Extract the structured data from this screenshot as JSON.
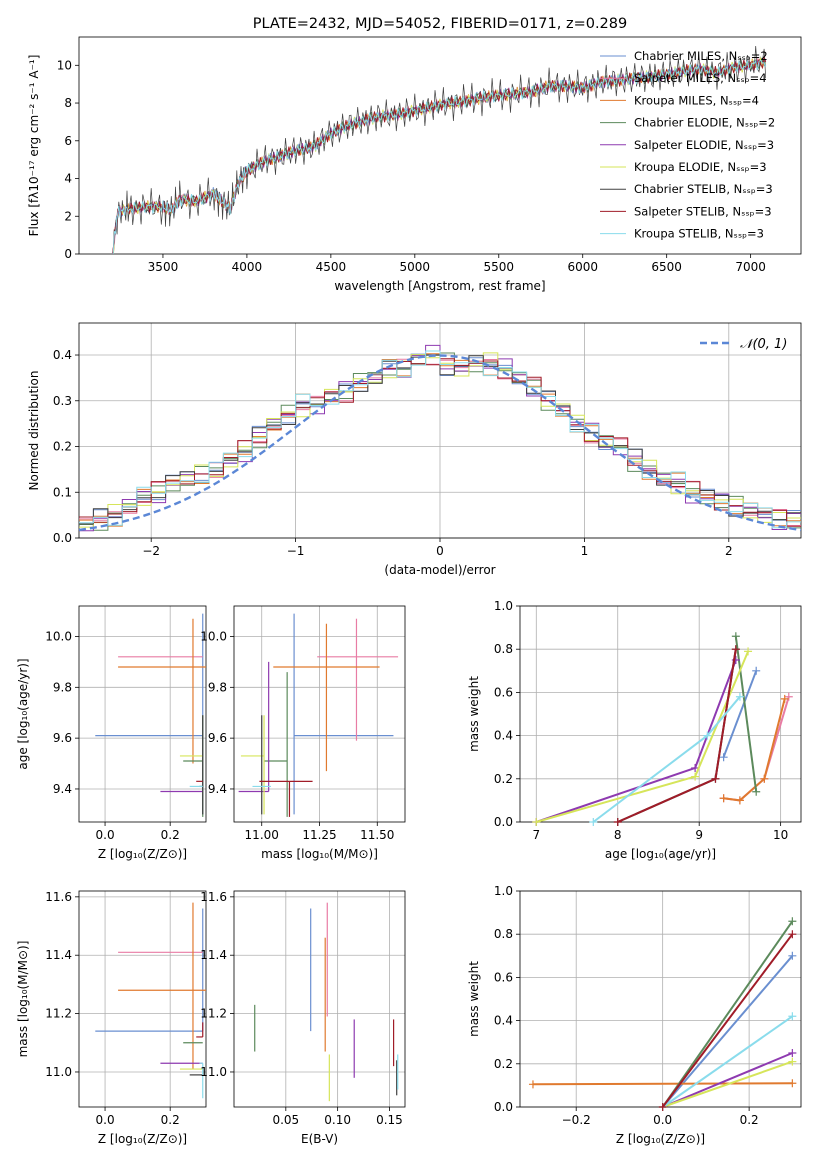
{
  "chart_data": [
    {
      "type": "line",
      "title": "PLATE=2432, MJD=54052, FIBERID=0171, z=0.289",
      "xlabel": "wavelength [Angstrom, rest frame]",
      "ylabel": "Flux [fλ10⁻¹⁷ erg cm⁻² s⁻¹ A⁻¹]",
      "xlim": [
        3000,
        7300
      ],
      "ylim": [
        0,
        11.5
      ],
      "xticks": [
        3500,
        4000,
        4500,
        5000,
        5500,
        6000,
        6500,
        7000
      ],
      "yticks": [
        0,
        2,
        4,
        6,
        8,
        10
      ],
      "legend_position": "top-right",
      "spectrum": {
        "x": [
          3200,
          3230,
          3300,
          3400,
          3500,
          3550,
          3600,
          3700,
          3800,
          3850,
          3900,
          3950,
          4000,
          4100,
          4200,
          4300,
          4400,
          4500,
          4600,
          4700,
          4800,
          4900,
          5000,
          5100,
          5200,
          5300,
          5400,
          5500,
          5600,
          5700,
          5800,
          5900,
          6000,
          6100,
          6200,
          6300,
          6400,
          6500,
          6600,
          6700,
          6800,
          6900,
          7000,
          7100
        ],
        "y": [
          0,
          2.2,
          2.4,
          2.5,
          2.5,
          2.3,
          2.9,
          2.8,
          3.2,
          2.8,
          2.4,
          3.8,
          4.4,
          4.9,
          5.2,
          5.5,
          5.7,
          6.4,
          6.8,
          7.1,
          7.3,
          7.4,
          7.6,
          7.8,
          8.0,
          8.1,
          8.3,
          8.4,
          8.5,
          8.6,
          8.9,
          8.9,
          8.8,
          9.1,
          9.2,
          9.3,
          9.4,
          9.5,
          9.7,
          9.8,
          9.6,
          9.9,
          10.0,
          10.2
        ]
      },
      "series": [
        {
          "name": "Chabrier MILES, N_SSP=2",
          "color": "#6a8fd0"
        },
        {
          "name": "Salpeter MILES, N_SSP=4",
          "color": "#e87ca4"
        },
        {
          "name": "Kroupa MILES, N_SSP=4",
          "color": "#e07a2f"
        },
        {
          "name": "Chabrier ELODIE, N_SSP=2",
          "color": "#5c8a5c"
        },
        {
          "name": "Salpeter ELODIE, N_SSP=3",
          "color": "#8e3ab0"
        },
        {
          "name": "Kroupa ELODIE, N_SSP=3",
          "color": "#d6e55a"
        },
        {
          "name": "Chabrier STELIB, N_SSP=3",
          "color": "#404040"
        },
        {
          "name": "Salpeter STELIB, N_SSP=3",
          "color": "#a01c28"
        },
        {
          "name": "Kroupa STELIB, N_SSP=3",
          "color": "#8adcec"
        }
      ]
    },
    {
      "type": "line",
      "xlabel": "(data-model)/error",
      "ylabel": "Normed distribution",
      "xlim": [
        -2.5,
        2.5
      ],
      "ylim": [
        0,
        0.47
      ],
      "xticks": [
        -2,
        -1,
        0,
        1,
        2
      ],
      "yticks": [
        0.0,
        0.1,
        0.2,
        0.3,
        0.4
      ],
      "grid": true,
      "legend_position": "top-right",
      "reference_curve": {
        "name": "𝒩(0, 1)",
        "color": "#5b87d6",
        "style": "dashed"
      },
      "bins": [
        -2.45,
        -2.35,
        -2.25,
        -2.15,
        -2.05,
        -1.95,
        -1.85,
        -1.75,
        -1.65,
        -1.55,
        -1.45,
        -1.35,
        -1.25,
        -1.15,
        -1.05,
        -0.95,
        -0.85,
        -0.75,
        -0.65,
        -0.55,
        -0.45,
        -0.35,
        -0.25,
        -0.15,
        -0.05,
        0.05,
        0.15,
        0.25,
        0.35,
        0.45,
        0.55,
        0.65,
        0.75,
        0.85,
        0.95,
        1.05,
        1.15,
        1.25,
        1.35,
        1.45,
        1.55,
        1.65,
        1.75,
        1.85,
        1.95,
        2.05,
        2.15,
        2.25,
        2.35,
        2.45
      ],
      "histogram_envelope": [
        0.03,
        0.04,
        0.05,
        0.07,
        0.09,
        0.1,
        0.12,
        0.13,
        0.14,
        0.15,
        0.17,
        0.19,
        0.22,
        0.25,
        0.27,
        0.29,
        0.29,
        0.31,
        0.32,
        0.34,
        0.35,
        0.37,
        0.37,
        0.39,
        0.4,
        0.38,
        0.37,
        0.38,
        0.38,
        0.37,
        0.35,
        0.33,
        0.3,
        0.28,
        0.25,
        0.23,
        0.21,
        0.2,
        0.17,
        0.15,
        0.13,
        0.12,
        0.1,
        0.09,
        0.08,
        0.07,
        0.06,
        0.05,
        0.04,
        0.04
      ]
    },
    {
      "type": "scatter",
      "xlabel": "Z [log₁₀(Z/Z⊙)]",
      "ylabel": "age  [log₁₀(age/yr)]",
      "xlim": [
        -0.08,
        0.31
      ],
      "ylim": [
        9.27,
        10.12
      ],
      "xticks": [
        0.0,
        0.2
      ],
      "yticks": [
        9.4,
        9.6,
        9.8,
        10.0
      ],
      "points": [
        {
          "x": 0.3,
          "y": 9.61,
          "xerr": [
            0.33,
            0.0
          ],
          "yerr": [
            0.31,
            0.48
          ],
          "color": "#6a8fd0"
        },
        {
          "x": 0.3,
          "y": 9.92,
          "xerr": [
            0.26,
            0.0
          ],
          "yerr": [
            0.0,
            0.0
          ],
          "color": "#e87ca4"
        },
        {
          "x": 0.27,
          "y": 9.88,
          "xerr": [
            0.23,
            0.04
          ],
          "yerr": [
            0.38,
            0.19
          ],
          "color": "#e07a2f"
        },
        {
          "x": 0.3,
          "y": 9.51,
          "xerr": [
            0.06,
            0.0
          ],
          "yerr": [
            0.22,
            0.18
          ],
          "color": "#5c8a5c"
        },
        {
          "x": 0.3,
          "y": 9.39,
          "xerr": [
            0.13,
            0.0
          ],
          "yerr": [
            0.0,
            0.0
          ],
          "color": "#8e3ab0"
        },
        {
          "x": 0.3,
          "y": 9.53,
          "xerr": [
            0.07,
            0.0
          ],
          "yerr": [
            0.0,
            0.0
          ],
          "color": "#d6e55a"
        },
        {
          "x": 0.3,
          "y": 9.41,
          "xerr": [
            0.01,
            0.0
          ],
          "yerr": [
            0.11,
            0.28
          ],
          "color": "#404040"
        },
        {
          "x": 0.3,
          "y": 9.43,
          "xerr": [
            0.02,
            0.0
          ],
          "yerr": [
            0.0,
            0.0
          ],
          "color": "#a01c28"
        },
        {
          "x": 0.3,
          "y": 9.41,
          "xerr": [
            0.04,
            0.0
          ],
          "yerr": [
            0.0,
            0.0
          ],
          "color": "#8adcec"
        }
      ]
    },
    {
      "type": "scatter",
      "xlabel": "mass [log₁₀(M/M⊙)]",
      "ylabel": "",
      "xlim": [
        10.88,
        11.62
      ],
      "ylim": [
        9.27,
        10.12
      ],
      "xticks": [
        11.0,
        11.25,
        11.5
      ],
      "yticks": [
        9.4,
        9.6,
        9.8,
        10.0
      ],
      "points": [
        {
          "x": 11.14,
          "y": 9.61,
          "xerr": [
            0.0,
            0.43
          ],
          "yerr": [
            0.31,
            0.48
          ],
          "color": "#6a8fd0"
        },
        {
          "x": 11.41,
          "y": 9.92,
          "xerr": [
            0.17,
            0.18
          ],
          "yerr": [
            0.33,
            0.15
          ],
          "color": "#e87ca4"
        },
        {
          "x": 11.28,
          "y": 9.88,
          "xerr": [
            0.23,
            0.23
          ],
          "yerr": [
            0.41,
            0.17
          ],
          "color": "#e07a2f"
        },
        {
          "x": 11.11,
          "y": 9.51,
          "xerr": [
            0.1,
            0.0
          ],
          "yerr": [
            0.22,
            0.35
          ],
          "color": "#5c8a5c"
        },
        {
          "x": 11.03,
          "y": 9.39,
          "xerr": [
            0.13,
            0.0
          ],
          "yerr": [
            0.0,
            0.51
          ],
          "color": "#8e3ab0"
        },
        {
          "x": 11.01,
          "y": 9.53,
          "xerr": [
            0.1,
            0.0
          ],
          "yerr": [
            0.23,
            0.16
          ],
          "color": "#d6e55a"
        },
        {
          "x": 11.0,
          "y": 9.41,
          "xerr": [
            0.0,
            0.0
          ],
          "yerr": [
            0.11,
            0.28
          ],
          "color": "#404040"
        },
        {
          "x": 11.12,
          "y": 9.43,
          "xerr": [
            0.13,
            0.1
          ],
          "yerr": [
            0.14,
            0.0
          ],
          "color": "#a01c28"
        },
        {
          "x": 10.98,
          "y": 9.41,
          "xerr": [
            0.02,
            0.06
          ],
          "yerr": [
            0.0,
            0.0
          ],
          "color": "#8adcec"
        }
      ]
    },
    {
      "type": "line",
      "xlabel": "age  [log₁₀(age/yr)]",
      "ylabel": "mass weight",
      "xlim": [
        6.8,
        10.25
      ],
      "ylim": [
        0,
        1
      ],
      "xticks": [
        7,
        8,
        9,
        10
      ],
      "yticks": [
        0.0,
        0.2,
        0.4,
        0.6,
        0.8,
        1.0
      ],
      "grid": true,
      "series": [
        {
          "color": "#6a8fd0",
          "x": [
            9.3,
            9.7
          ],
          "y": [
            0.3,
            0.7
          ]
        },
        {
          "color": "#e87ca4",
          "x": [
            9.3,
            9.5,
            9.8,
            10.1
          ],
          "y": [
            0.11,
            0.1,
            0.2,
            0.58
          ]
        },
        {
          "color": "#e07a2f",
          "x": [
            9.3,
            9.5,
            9.8,
            10.05
          ],
          "y": [
            0.11,
            0.1,
            0.2,
            0.57
          ]
        },
        {
          "color": "#5c8a5c",
          "x": [
            9.45,
            9.7
          ],
          "y": [
            0.86,
            0.14
          ]
        },
        {
          "color": "#8e3ab0",
          "x": [
            7.0,
            8.95,
            9.45
          ],
          "y": [
            0.0,
            0.25,
            0.75
          ]
        },
        {
          "color": "#d6e55a",
          "x": [
            7.0,
            8.95,
            9.6
          ],
          "y": [
            0.0,
            0.21,
            0.79
          ]
        },
        {
          "color": "#404040",
          "x": [
            8.0,
            9.2,
            9.45
          ],
          "y": [
            0.0,
            0.2,
            0.8
          ]
        },
        {
          "color": "#a01c28",
          "x": [
            8.0,
            9.2,
            9.45
          ],
          "y": [
            0.0,
            0.2,
            0.8
          ]
        },
        {
          "color": "#8adcec",
          "x": [
            7.7,
            9.1,
            9.5
          ],
          "y": [
            0.0,
            0.4,
            0.58
          ]
        }
      ]
    },
    {
      "type": "scatter",
      "xlabel": "Z [log₁₀(Z/Z⊙)]",
      "ylabel": "mass [log₁₀(M/M⊙)]",
      "xlim": [
        -0.08,
        0.31
      ],
      "ylim": [
        10.88,
        11.62
      ],
      "xticks": [
        0.0,
        0.2
      ],
      "yticks": [
        11.0,
        11.2,
        11.4,
        11.6
      ],
      "points": [
        {
          "x": 0.3,
          "y": 11.14,
          "xerr": [
            0.33,
            0.0
          ],
          "yerr": [
            0.0,
            0.42
          ],
          "color": "#6a8fd0"
        },
        {
          "x": 0.3,
          "y": 11.41,
          "xerr": [
            0.26,
            0.0
          ],
          "yerr": [
            0.0,
            0.0
          ],
          "color": "#e87ca4"
        },
        {
          "x": 0.27,
          "y": 11.28,
          "xerr": [
            0.23,
            0.04
          ],
          "yerr": [
            0.27,
            0.3
          ],
          "color": "#e07a2f"
        },
        {
          "x": 0.3,
          "y": 11.1,
          "xerr": [
            0.06,
            0.0
          ],
          "yerr": [
            0.0,
            0.0
          ],
          "color": "#5c8a5c"
        },
        {
          "x": 0.3,
          "y": 11.03,
          "xerr": [
            0.13,
            0.0
          ],
          "yerr": [
            0.0,
            0.0
          ],
          "color": "#8e3ab0"
        },
        {
          "x": 0.3,
          "y": 11.01,
          "xerr": [
            0.07,
            0.0
          ],
          "yerr": [
            0.0,
            0.0
          ],
          "color": "#d6e55a"
        },
        {
          "x": 0.3,
          "y": 10.99,
          "xerr": [
            0.04,
            0.0
          ],
          "yerr": [
            0.0,
            0.0
          ],
          "color": "#404040"
        },
        {
          "x": 0.3,
          "y": 11.12,
          "xerr": [
            0.02,
            0.0
          ],
          "yerr": [
            0.0,
            0.05
          ],
          "color": "#a01c28"
        },
        {
          "x": 0.3,
          "y": 11.03,
          "xerr": [
            0.01,
            0.0
          ],
          "yerr": [
            0.12,
            0.0
          ],
          "color": "#8adcec"
        }
      ]
    },
    {
      "type": "scatter",
      "xlabel": "E(B-V)",
      "ylabel": "",
      "xlim": [
        0.0,
        0.165
      ],
      "ylim": [
        10.88,
        11.62
      ],
      "xticks": [
        0.05,
        0.1,
        0.15
      ],
      "yticks": [
        11.0,
        11.2,
        11.4,
        11.6
      ],
      "points": [
        {
          "x": 0.074,
          "y": 11.14,
          "yerr": [
            0.0,
            0.42
          ],
          "color": "#6a8fd0"
        },
        {
          "x": 0.09,
          "y": 11.41,
          "yerr": [
            0.22,
            0.17
          ],
          "color": "#e87ca4"
        },
        {
          "x": 0.088,
          "y": 11.28,
          "yerr": [
            0.21,
            0.18
          ],
          "color": "#e07a2f"
        },
        {
          "x": 0.02,
          "y": 11.15,
          "yerr": [
            0.08,
            0.08
          ],
          "color": "#5c8a5c"
        },
        {
          "x": 0.116,
          "y": 11.08,
          "yerr": [
            0.1,
            0.1
          ],
          "color": "#8e3ab0"
        },
        {
          "x": 0.092,
          "y": 10.98,
          "yerr": [
            0.08,
            0.08
          ],
          "color": "#d6e55a"
        },
        {
          "x": 0.157,
          "y": 10.98,
          "yerr": [
            0.06,
            0.06
          ],
          "color": "#404040"
        },
        {
          "x": 0.154,
          "y": 11.1,
          "yerr": [
            0.08,
            0.08
          ],
          "color": "#a01c28"
        },
        {
          "x": 0.158,
          "y": 11.0,
          "yerr": [
            0.06,
            0.06
          ],
          "color": "#8adcec"
        }
      ]
    },
    {
      "type": "line",
      "xlabel": "Z [log₁₀(Z/Z⊙)]",
      "ylabel": "mass weight",
      "xlim": [
        -0.33,
        0.32
      ],
      "ylim": [
        0,
        1
      ],
      "xticks": [
        -0.2,
        0.0,
        0.2
      ],
      "yticks": [
        0.0,
        0.2,
        0.4,
        0.6,
        0.8,
        1.0
      ],
      "grid": true,
      "series": [
        {
          "color": "#6a8fd0",
          "x": [
            0.0,
            0.3
          ],
          "y": [
            0.0,
            0.7
          ]
        },
        {
          "color": "#e07a2f",
          "x": [
            -0.3,
            0.3
          ],
          "y": [
            0.105,
            0.11
          ]
        },
        {
          "color": "#5c8a5c",
          "x": [
            0.0,
            0.3
          ],
          "y": [
            0.0,
            0.86
          ]
        },
        {
          "color": "#8e3ab0",
          "x": [
            0.0,
            0.3
          ],
          "y": [
            0.0,
            0.25
          ]
        },
        {
          "color": "#d6e55a",
          "x": [
            0.0,
            0.3
          ],
          "y": [
            0.0,
            0.21
          ]
        },
        {
          "color": "#8adcec",
          "x": [
            0.0,
            0.3
          ],
          "y": [
            0.0,
            0.42
          ]
        },
        {
          "color": "#a01c28",
          "x": [
            0.0,
            0.3
          ],
          "y": [
            0.0,
            0.8
          ]
        }
      ]
    }
  ]
}
